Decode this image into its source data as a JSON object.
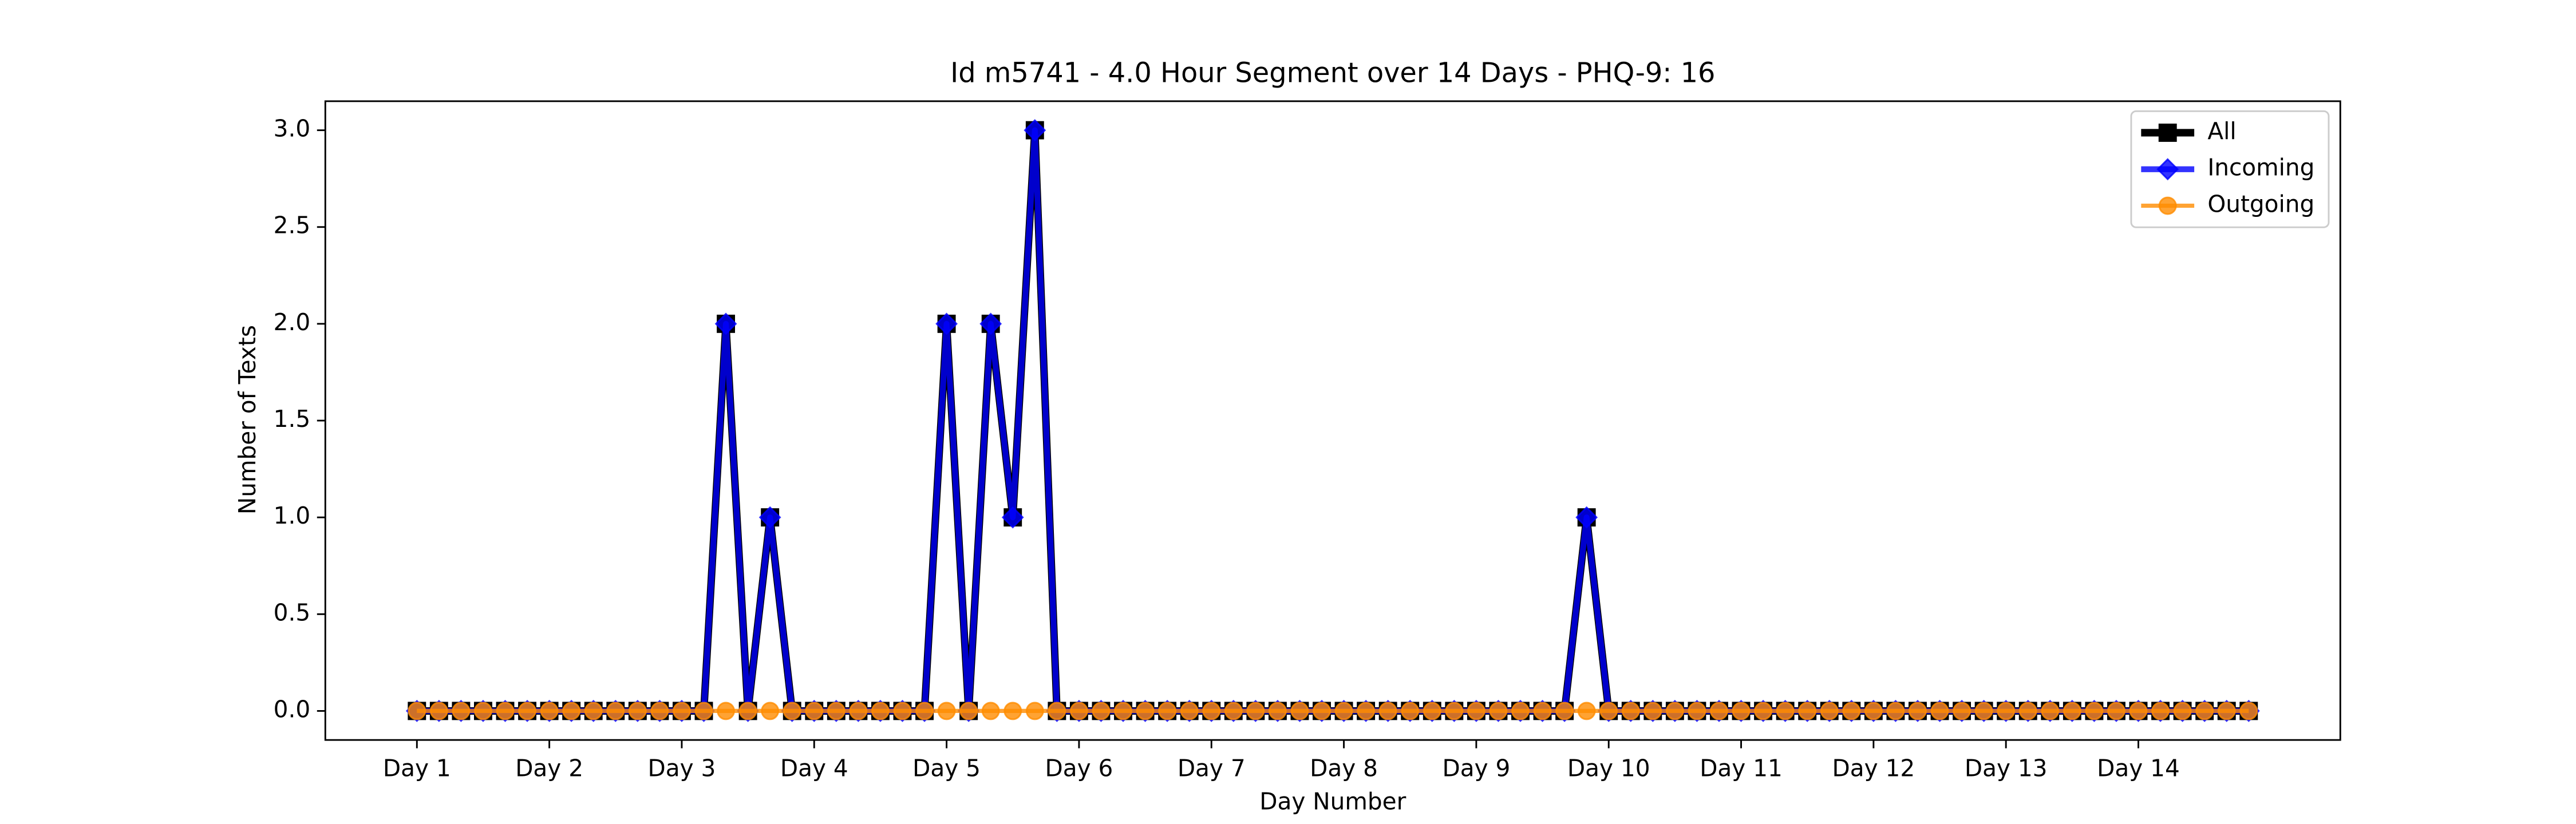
{
  "chart_data": {
    "type": "line",
    "title": "Id m5741 - 4.0 Hour Segment over 14 Days - PHQ-9: 16",
    "xlabel": "Day Number",
    "ylabel": "Number of Texts",
    "categories": [
      "Day 1",
      null,
      null,
      null,
      null,
      null,
      "Day 2",
      null,
      null,
      null,
      null,
      null,
      "Day 3",
      null,
      null,
      null,
      null,
      null,
      "Day 4",
      null,
      null,
      null,
      null,
      null,
      "Day 5",
      null,
      null,
      null,
      null,
      null,
      "Day 6",
      null,
      null,
      null,
      null,
      null,
      "Day 7",
      null,
      null,
      null,
      null,
      null,
      "Day 8",
      null,
      null,
      null,
      null,
      null,
      "Day 9",
      null,
      null,
      null,
      null,
      null,
      "Day 10",
      null,
      null,
      null,
      null,
      null,
      "Day 11",
      null,
      null,
      null,
      null,
      null,
      "Day 12",
      null,
      null,
      null,
      null,
      null,
      "Day 13",
      null,
      null,
      null,
      null,
      null,
      "Day 14",
      null,
      null,
      null,
      null,
      null
    ],
    "series": [
      {
        "name": "All",
        "color": "#000000",
        "alpha": 1,
        "marker": "square",
        "values": [
          0,
          0,
          0,
          0,
          0,
          0,
          0,
          0,
          0,
          0,
          0,
          0,
          0,
          0,
          2,
          0,
          1,
          0,
          0,
          0,
          0,
          0,
          0,
          0,
          2,
          0,
          2,
          1,
          3,
          0,
          0,
          0,
          0,
          0,
          0,
          0,
          0,
          0,
          0,
          0,
          0,
          0,
          0,
          0,
          0,
          0,
          0,
          0,
          0,
          0,
          0,
          0,
          0,
          1,
          0,
          0,
          0,
          0,
          0,
          0,
          0,
          0,
          0,
          0,
          0,
          0,
          0,
          0,
          0,
          0,
          0,
          0,
          0,
          0,
          0,
          0,
          0,
          0,
          0,
          0,
          0,
          0,
          0,
          0
        ]
      },
      {
        "name": "Incoming",
        "color": "#0000ff",
        "alpha": 0.8,
        "marker": "diamond",
        "values": [
          0,
          0,
          0,
          0,
          0,
          0,
          0,
          0,
          0,
          0,
          0,
          0,
          0,
          0,
          2,
          0,
          1,
          0,
          0,
          0,
          0,
          0,
          0,
          0,
          2,
          0,
          2,
          1,
          3,
          0,
          0,
          0,
          0,
          0,
          0,
          0,
          0,
          0,
          0,
          0,
          0,
          0,
          0,
          0,
          0,
          0,
          0,
          0,
          0,
          0,
          0,
          0,
          0,
          1,
          0,
          0,
          0,
          0,
          0,
          0,
          0,
          0,
          0,
          0,
          0,
          0,
          0,
          0,
          0,
          0,
          0,
          0,
          0,
          0,
          0,
          0,
          0,
          0,
          0,
          0,
          0,
          0,
          0,
          0
        ]
      },
      {
        "name": "Outgoing",
        "color": "#ff8c00",
        "alpha": 0.8,
        "marker": "circle",
        "values": [
          0,
          0,
          0,
          0,
          0,
          0,
          0,
          0,
          0,
          0,
          0,
          0,
          0,
          0,
          0,
          0,
          0,
          0,
          0,
          0,
          0,
          0,
          0,
          0,
          0,
          0,
          0,
          0,
          0,
          0,
          0,
          0,
          0,
          0,
          0,
          0,
          0,
          0,
          0,
          0,
          0,
          0,
          0,
          0,
          0,
          0,
          0,
          0,
          0,
          0,
          0,
          0,
          0,
          0,
          0,
          0,
          0,
          0,
          0,
          0,
          0,
          0,
          0,
          0,
          0,
          0,
          0,
          0,
          0,
          0,
          0,
          0,
          0,
          0,
          0,
          0,
          0,
          0,
          0,
          0,
          0,
          0,
          0,
          0
        ]
      }
    ],
    "xlim": [
      -4.15,
      87.15
    ],
    "ylim": [
      -0.15,
      3.15
    ],
    "yticks": [
      {
        "value": 0,
        "label": "0.0"
      },
      {
        "value": 0.5,
        "label": "0.5"
      },
      {
        "value": 1,
        "label": "1.0"
      },
      {
        "value": 1.5,
        "label": "1.5"
      },
      {
        "value": 2,
        "label": "2.0"
      },
      {
        "value": 2.5,
        "label": "2.5"
      },
      {
        "value": 3,
        "label": "3.0"
      }
    ],
    "legend": "upper right"
  }
}
